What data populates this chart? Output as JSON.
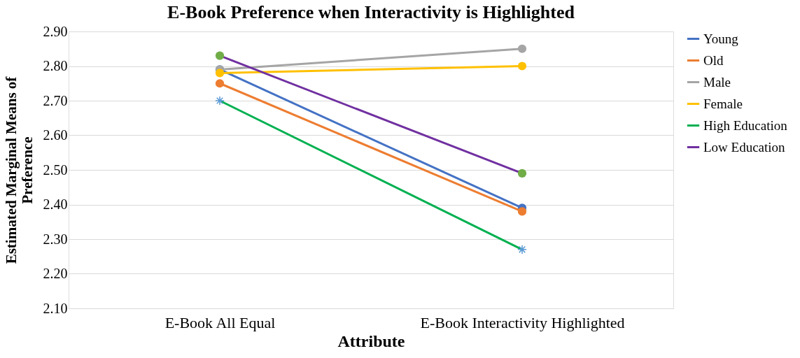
{
  "chart_data": {
    "type": "line",
    "title": "E-Book Preference when Interactivity is Highlighted",
    "xlabel": "Attribute",
    "ylabel": "Estimated Marginal Means of Preference",
    "categories": [
      "E-Book All Equal",
      "E-Book Interactivity Highlighted"
    ],
    "series": [
      {
        "name": "Young",
        "color": "#4472c4",
        "values": [
          2.79,
          2.39
        ],
        "marker": "circle"
      },
      {
        "name": "Old",
        "color": "#ed7d31",
        "values": [
          2.75,
          2.38
        ],
        "marker": "circle"
      },
      {
        "name": "Male",
        "color": "#a5a5a5",
        "values": [
          2.79,
          2.85
        ],
        "marker": "circle"
      },
      {
        "name": "Female",
        "color": "#ffc000",
        "values": [
          2.78,
          2.8
        ],
        "marker": "circle"
      },
      {
        "name": "High Education",
        "color": "#00b050",
        "colors": [
          "#5b9bd5",
          "#5b9bd5"
        ],
        "values": [
          2.7,
          2.27
        ],
        "marker": "cross"
      },
      {
        "name": "Low Education",
        "color": "#7030a0",
        "colors": [
          "#70ad47",
          "#70ad47"
        ],
        "values": [
          2.83,
          2.49
        ],
        "marker": "circle"
      }
    ],
    "ylim": [
      2.1,
      2.9
    ],
    "yticks": [
      {
        "value": 2.1,
        "label": "2.10"
      },
      {
        "value": 2.2,
        "label": "2.20"
      },
      {
        "value": 2.3,
        "label": "2.30"
      },
      {
        "value": 2.4,
        "label": "2.40"
      },
      {
        "value": 2.5,
        "label": "2.50"
      },
      {
        "value": 2.6,
        "label": "2.60"
      },
      {
        "value": 2.7,
        "label": "2.70"
      },
      {
        "value": 2.8,
        "label": "2.80"
      },
      {
        "value": 2.9,
        "label": "2.90"
      }
    ],
    "grid": "y",
    "legend": "right",
    "line_style": "solid"
  }
}
